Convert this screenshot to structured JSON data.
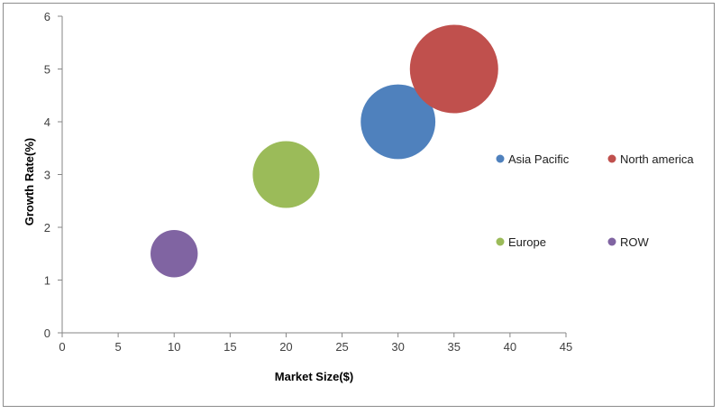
{
  "chart_data": {
    "type": "bubble",
    "xlabel": "Market Size($)",
    "ylabel": "Growth Rate(%)",
    "xlim": [
      0,
      45
    ],
    "ylim": [
      0,
      6
    ],
    "xticks": [
      0,
      5,
      10,
      15,
      20,
      25,
      30,
      35,
      40,
      45
    ],
    "yticks": [
      0,
      1,
      2,
      3,
      4,
      5,
      6
    ],
    "grid": false,
    "legend_position": "right",
    "series": [
      {
        "name": "Asia Pacific",
        "x": 30,
        "y": 4,
        "size": 25,
        "color": "#4f81bd"
      },
      {
        "name": "North america",
        "x": 35,
        "y": 5,
        "size": 35,
        "color": "#c0504d"
      },
      {
        "name": "Europe",
        "x": 20,
        "y": 3,
        "size": 20,
        "color": "#9bbb59"
      },
      {
        "name": "ROW",
        "x": 10,
        "y": 1.5,
        "size": 10,
        "color": "#8064a2"
      }
    ]
  }
}
